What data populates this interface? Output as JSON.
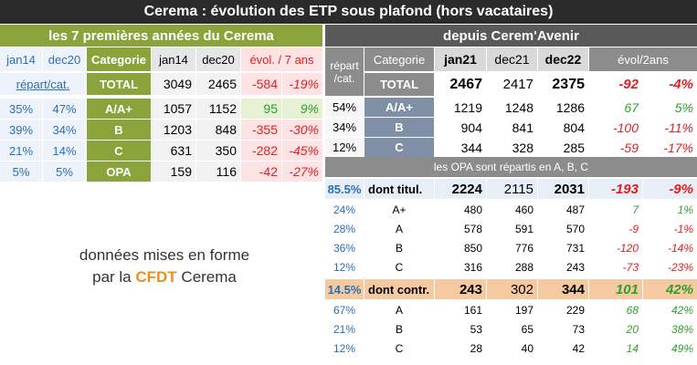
{
  "title": "Cerema : évolution des ETP sous plafond (hors vacataires)",
  "left": {
    "header": "les 7 premières années du Cerema",
    "col_labels": [
      "jan14",
      "dec20",
      "Categorie",
      "jan14",
      "dec20",
      "évol. / 7 ans"
    ],
    "total_row": {
      "link": "répart/cat.",
      "cat": "TOTAL",
      "jan14": "3049",
      "dec20": "2465",
      "evol": "-584",
      "pct": "-19%"
    },
    "rows": [
      {
        "p1": "35%",
        "p2": "47%",
        "cat": "A/A+",
        "jan14": "1057",
        "dec20": "1152",
        "evol": "95",
        "pct": "9%"
      },
      {
        "p1": "39%",
        "p2": "34%",
        "cat": "B",
        "jan14": "1203",
        "dec20": "848",
        "evol": "-355",
        "pct": "-30%"
      },
      {
        "p1": "21%",
        "p2": "14%",
        "cat": "C",
        "jan14": "631",
        "dec20": "350",
        "evol": "-282",
        "pct": "-45%"
      },
      {
        "p1": "5%",
        "p2": "5%",
        "cat": "OPA",
        "jan14": "159",
        "dec20": "116",
        "evol": "-42",
        "pct": "-27%"
      }
    ]
  },
  "right": {
    "header": "depuis Cerem'Avenir",
    "repart_label": "répart /cat.",
    "col_labels": [
      "Categorie",
      "jan21",
      "dec21",
      "dec22",
      "évol/2ans"
    ],
    "total_row": {
      "cat": "TOTAL",
      "jan21": "2467",
      "dec21": "2417",
      "dec22": "2375",
      "evol": "-92",
      "pct": "-4%"
    },
    "rows": [
      {
        "rep": "54%",
        "cat": "A/A+",
        "jan21": "1219",
        "dec21": "1248",
        "dec22": "1286",
        "evol": "67",
        "pct": "5%"
      },
      {
        "rep": "34%",
        "cat": "B",
        "jan21": "904",
        "dec21": "841",
        "dec22": "804",
        "evol": "-100",
        "pct": "-11%"
      },
      {
        "rep": "12%",
        "cat": "C",
        "jan21": "344",
        "dec21": "328",
        "dec22": "285",
        "evol": "-59",
        "pct": "-17%"
      }
    ],
    "opa_note": "les OPA sont répartis en A, B, C",
    "titul": {
      "rep": "85.5%",
      "label": "dont titul.",
      "jan21": "2224",
      "dec21": "2115",
      "dec22": "2031",
      "evol": "-193",
      "pct": "-9%"
    },
    "titul_rows": [
      {
        "rep": "24%",
        "cat": "A+",
        "jan21": "480",
        "dec21": "460",
        "dec22": "487",
        "evol": "7",
        "pct": "1%"
      },
      {
        "rep": "28%",
        "cat": "A",
        "jan21": "578",
        "dec21": "591",
        "dec22": "570",
        "evol": "-9",
        "pct": "-1%"
      },
      {
        "rep": "36%",
        "cat": "B",
        "jan21": "850",
        "dec21": "776",
        "dec22": "731",
        "evol": "-120",
        "pct": "-14%"
      },
      {
        "rep": "12%",
        "cat": "C",
        "jan21": "316",
        "dec21": "288",
        "dec22": "243",
        "evol": "-73",
        "pct": "-23%"
      }
    ],
    "contr": {
      "rep": "14.5%",
      "label": "dont contr.",
      "jan21": "243",
      "dec21": "302",
      "dec22": "344",
      "evol": "101",
      "pct": "42%"
    },
    "contr_rows": [
      {
        "rep": "67%",
        "cat": "A",
        "jan21": "161",
        "dec21": "197",
        "dec22": "229",
        "evol": "68",
        "pct": "42%"
      },
      {
        "rep": "21%",
        "cat": "B",
        "jan21": "53",
        "dec21": "65",
        "dec22": "73",
        "evol": "20",
        "pct": "38%"
      },
      {
        "rep": "12%",
        "cat": "C",
        "jan21": "28",
        "dec21": "40",
        "dec22": "42",
        "evol": "14",
        "pct": "49%"
      }
    ]
  },
  "caption": {
    "line1": "données mises en forme",
    "line2_pre": "par la ",
    "line2_brand": "CFDT",
    "line2_post": " Cerema"
  },
  "colors": {
    "green_header": "#8aa33a",
    "dark_header": "#595959",
    "gray_band": "#8c8c8c",
    "blue": "#2a6fb7",
    "red": "#e02020",
    "green": "#2ea02e",
    "orange_row": "#f6caa0",
    "cfdt_orange": "#f28c1e"
  }
}
